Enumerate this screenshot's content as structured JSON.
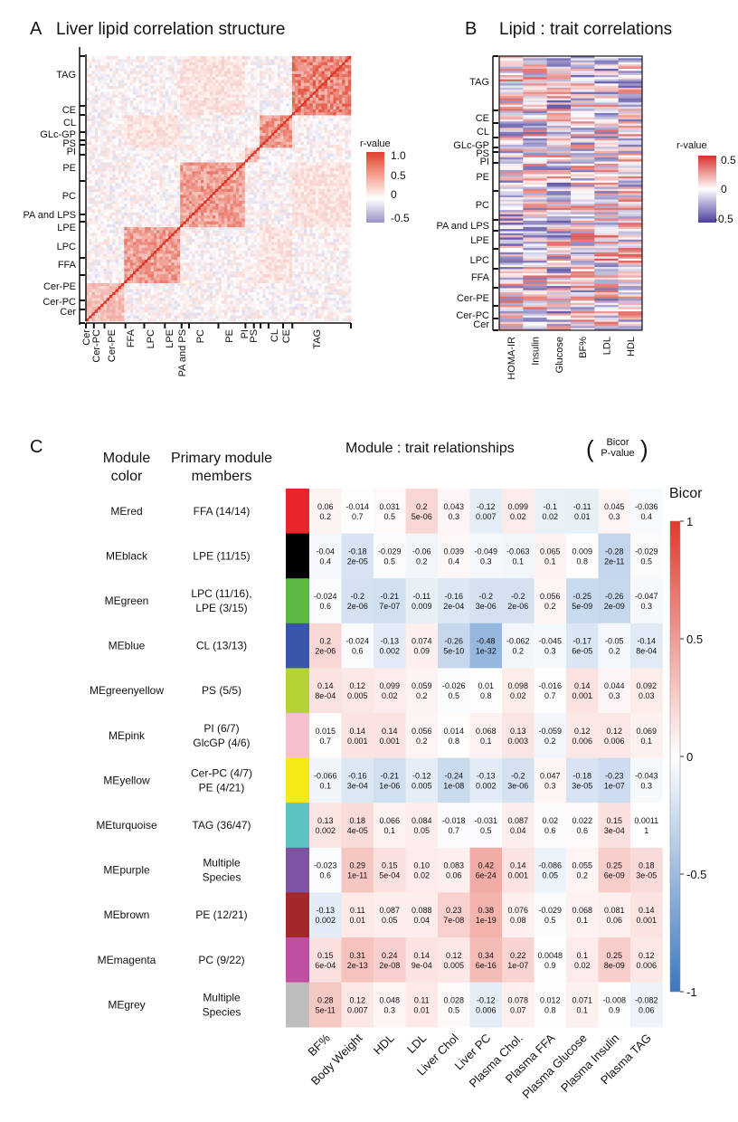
{
  "panels": {
    "A": {
      "letter": "A",
      "title": "Liver lipid correlation structure",
      "legend_title": "r-value"
    },
    "B": {
      "letter": "B",
      "title": "Lipid : trait correlations",
      "legend_title": "r-value"
    },
    "C": {
      "letter": "C",
      "title": "Module : trait relationships",
      "bracket_top": "Bicor",
      "bracket_bottom": "P-value",
      "col_header_module": [
        "Module",
        "color"
      ],
      "col_header_members": [
        "Primary module",
        "members"
      ],
      "legend_title": "Bicor"
    }
  },
  "chart_data": [
    {
      "type": "heatmap",
      "panel": "A",
      "title": "Liver lipid correlation structure",
      "row_labels": [
        "TAG",
        "CE",
        "CL",
        "GLc-GP",
        "PS",
        "PI",
        "PE",
        "PC",
        "PA and LPS",
        "LPE",
        "LPC",
        "FFA",
        "Cer-PE",
        "Cer-PC",
        "Cer"
      ],
      "col_labels": [
        "Cer",
        "Cer-PC",
        "Cer-PE",
        "FFA",
        "LPC",
        "LPE",
        "PA and PS",
        "PC",
        "PE",
        "PI",
        "PS",
        "CL",
        "CE",
        "TAG"
      ],
      "legend": {
        "title": "r-value",
        "ticks": [
          "1.0",
          "0.5",
          "0",
          "-0.5"
        ],
        "range": [
          -0.5,
          1.0
        ],
        "colors": {
          "high": "#e0402a",
          "mid": "#ffffff",
          "low": "#9c8fc6"
        },
        "placement": "right"
      }
    },
    {
      "type": "heatmap",
      "panel": "B",
      "title": "Lipid : trait correlations",
      "row_labels": [
        "TAG",
        "CE",
        "CL",
        "GLc-GP",
        "PS",
        "PI",
        "PE",
        "PC",
        "PA and LPS",
        "LPE",
        "LPC",
        "FFA",
        "Cer-PE",
        "Cer-PC",
        "Cer"
      ],
      "col_labels": [
        "HOMA-IR",
        "Insulin",
        "Glucose",
        "BF%",
        "LDL",
        "HDL"
      ],
      "legend": {
        "title": "r-value",
        "ticks": [
          "0.5",
          "0",
          "-0.5"
        ],
        "range": [
          -0.5,
          0.5
        ],
        "colors": {
          "high": "#d7302a",
          "mid": "#ffffff",
          "low": "#4a3f9c"
        },
        "placement": "right"
      }
    },
    {
      "type": "heatmap",
      "panel": "C",
      "title": "Module : trait relationships",
      "columns": [
        "BF%",
        "Body Weight",
        "HDL",
        "LDL",
        "Liver Chol",
        "Liver PC",
        "Plasma Chol.",
        "Plasma FFA",
        "Plasma Glucose",
        "Plasma Insulin",
        "Plasma TAG"
      ],
      "legend": {
        "title": "Bicor",
        "ticks": [
          "1",
          "0.5",
          "0",
          "-0.5",
          "-1"
        ],
        "range": [
          -1,
          1
        ],
        "colors": {
          "high": "#e0392b",
          "mid": "#ffffff",
          "low": "#3a78c0"
        },
        "placement": "right"
      },
      "rows": [
        {
          "module": "MEred",
          "color": "#e8262b",
          "members": [
            "FFA (14/14)"
          ],
          "bicor": [
            "0.06",
            "-0.014",
            "0.031",
            "0.2",
            "0.043",
            "-0.12",
            "0.099",
            "-0.1",
            "-0.11",
            "0.045",
            "-0.036"
          ],
          "p": [
            "0.2",
            "0.7",
            "0.5",
            "5e-06",
            "0.3",
            "0.007",
            "0.02",
            "0.02",
            "0.01",
            "0.3",
            "0.4"
          ]
        },
        {
          "module": "MEblack",
          "color": "#000000",
          "members": [
            "LPE (11/15)"
          ],
          "bicor": [
            "-0.04",
            "-0.18",
            "-0.029",
            "-0.06",
            "0.039",
            "-0.049",
            "-0.063",
            "0.065",
            "0.009",
            "-0.28",
            "-0.029"
          ],
          "p": [
            "0.4",
            "2e-05",
            "0.5",
            "0.2",
            "0.4",
            "0.3",
            "0.1",
            "0.1",
            "0.8",
            "2e-11",
            "0.5"
          ]
        },
        {
          "module": "MEgreen",
          "color": "#5cb946",
          "members": [
            "LPC (11/16),",
            "LPE (3/15)"
          ],
          "bicor": [
            "-0.024",
            "-0.2",
            "-0.21",
            "-0.11",
            "-0.16",
            "-0.2",
            "-0.2",
            "0.056",
            "-0.25",
            "-0.26",
            "-0.047"
          ],
          "p": [
            "0.6",
            "2e-06",
            "7e-07",
            "0.009",
            "2e-04",
            "3e-06",
            "2e-06",
            "0.2",
            "5e-09",
            "2e-09",
            "0.3"
          ]
        },
        {
          "module": "MEblue",
          "color": "#3a56a8",
          "members": [
            "CL (13/13)"
          ],
          "bicor": [
            "0.2",
            "-0.024",
            "-0.13",
            "0.074",
            "-0.26",
            "-0.48",
            "-0.062",
            "-0.045",
            "-0.17",
            "-0.05",
            "-0.14"
          ],
          "p": [
            "2e-06",
            "0.6",
            "0.002",
            "0.09",
            "5e-10",
            "1e-32",
            "0.2",
            "0.3",
            "6e-05",
            "0.2",
            "8e-04"
          ]
        },
        {
          "module": "MEgreenyellow",
          "color": "#b5d334",
          "members": [
            "PS (5/5)"
          ],
          "bicor": [
            "0.14",
            "0.12",
            "0.099",
            "0.059",
            "-0.026",
            "0.01",
            "0.098",
            "-0.016",
            "0.14",
            "0.044",
            "0.092"
          ],
          "p": [
            "8e-04",
            "0.005",
            "0.02",
            "0.2",
            "0.5",
            "0.8",
            "0.02",
            "0.7",
            "0.001",
            "0.3",
            "0.03"
          ]
        },
        {
          "module": "MEpink",
          "color": "#f5bfcb",
          "members": [
            "PI (6/7)",
            "GlcGP (4/6)"
          ],
          "bicor": [
            "0.015",
            "0.14",
            "0.14",
            "0.056",
            "0.014",
            "0.068",
            "0.13",
            "-0.059",
            "0.12",
            "0.12",
            "0.069"
          ],
          "p": [
            "0.7",
            "0.001",
            "0.001",
            "0.2",
            "0.8",
            "0.1",
            "0.003",
            "0.2",
            "0.006",
            "0.006",
            "0.1"
          ]
        },
        {
          "module": "MEyellow",
          "color": "#f5ea14",
          "members": [
            "Cer-PC (4/7)",
            "PE (4/21)"
          ],
          "bicor": [
            "-0.066",
            "-0.16",
            "-0.21",
            "-0.12",
            "-0.24",
            "-0.13",
            "-0.2",
            "0.047",
            "-0.18",
            "-0.23",
            "-0.043"
          ],
          "p": [
            "0.1",
            "3e-04",
            "1e-06",
            "0.005",
            "1e-08",
            "0.002",
            "3e-06",
            "0.3",
            "3e-05",
            "1e-07",
            "0.3"
          ]
        },
        {
          "module": "MEturquoise",
          "color": "#5cc4c0",
          "members": [
            "TAG (36/47)"
          ],
          "bicor": [
            "0.13",
            "0.18",
            "0.066",
            "0.084",
            "-0.018",
            "-0.031",
            "0.087",
            "0.02",
            "0.022",
            "0.15",
            "0.0011"
          ],
          "p": [
            "0.002",
            "4e-05",
            "0.1",
            "0.05",
            "0.7",
            "0.5",
            "0.04",
            "0.6",
            "0.6",
            "3e-04",
            "1"
          ]
        },
        {
          "module": "MEpurple",
          "color": "#7e53a2",
          "members": [
            "Multiple",
            "Species"
          ],
          "bicor": [
            "-0.023",
            "0.29",
            "0.15",
            "0.10",
            "0.083",
            "0.42",
            "0.14",
            "-0.086",
            "0.055",
            "0.25",
            "0.18"
          ],
          "p": [
            "0.6",
            "1e-11",
            "5e-04",
            "0.02",
            "0.06",
            "6e-24",
            "0.001",
            "0.05",
            "0.2",
            "6e-09",
            "3e-05"
          ]
        },
        {
          "module": "MEbrown",
          "color": "#a2282b",
          "members": [
            "PE (12/21)"
          ],
          "bicor": [
            "-0.13",
            "0.11",
            "0.087",
            "0.088",
            "0.23",
            "0.38",
            "0.076",
            "-0.029",
            "0.068",
            "0.081",
            "0.14"
          ],
          "p": [
            "0.002",
            "0.01",
            "0.05",
            "0.04",
            "7e-08",
            "1e-19",
            "0.08",
            "0.5",
            "0.1",
            "0.06",
            "0.001"
          ]
        },
        {
          "module": "MEmagenta",
          "color": "#bf4fa0",
          "members": [
            "PC (9/22)"
          ],
          "bicor": [
            "0.15",
            "0.31",
            "0.24",
            "0.14",
            "0.12",
            "0.34",
            "0.22",
            "0.0048",
            "0.1",
            "0.25",
            "0.12"
          ],
          "p": [
            "6e-04",
            "2e-13",
            "2e-08",
            "9e-04",
            "0.005",
            "6e-16",
            "1e-07",
            "0.9",
            "0.02",
            "8e-09",
            "0.006"
          ]
        },
        {
          "module": "MEgrey",
          "color": "#bdbdbd",
          "members": [
            "Multiple",
            "Species"
          ],
          "bicor": [
            "0.28",
            "0.12",
            "0.048",
            "0.11",
            "0.028",
            "-0.12",
            "0.078",
            "0.012",
            "0.071",
            "-0.008",
            "-0.082"
          ],
          "p": [
            "5e-11",
            "0.007",
            "0.3",
            "0.01",
            "0.5",
            "0.006",
            "0.07",
            "0.8",
            "0.1",
            "0.9",
            "0.06"
          ]
        }
      ]
    }
  ]
}
